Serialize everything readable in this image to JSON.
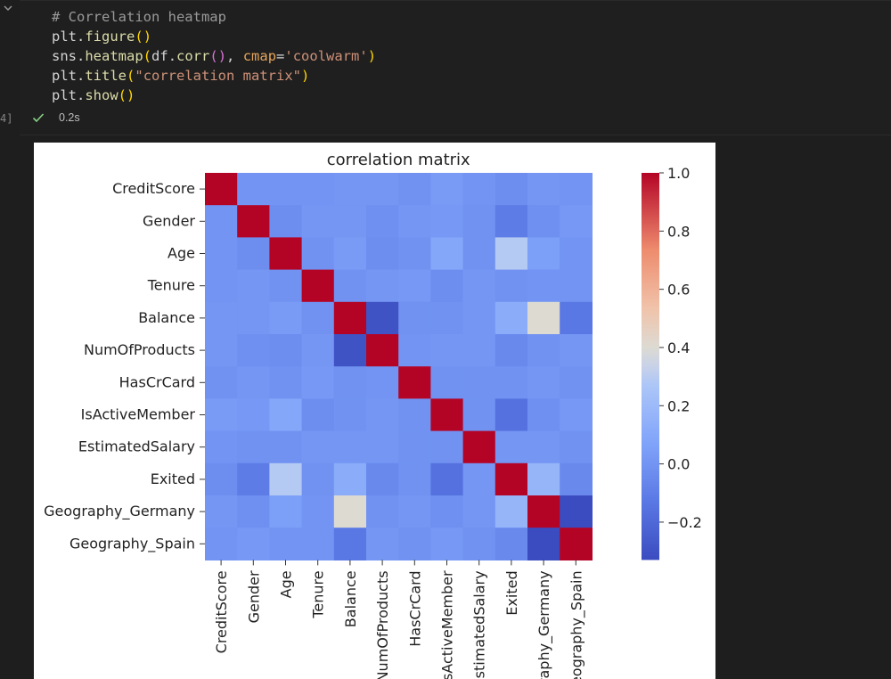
{
  "editor": {
    "code_lines": [
      "# Correlation heatmap",
      "plt.figure()",
      "sns.heatmap(df.corr(), cmap='coolwarm')",
      "plt.title(\"correlation matrix\")",
      "plt.show()"
    ],
    "exec_count": "4]",
    "status_time": "0.2s",
    "colors": {
      "background": "#1f1f1f",
      "comment": "#9a9a9a",
      "function": "#dcdcaa",
      "keyword_arg": "#e5a45a",
      "string": "#ce9178",
      "success": "#89d185"
    }
  },
  "chart_data": {
    "type": "heatmap",
    "title": "correlation matrix",
    "colormap": "coolwarm",
    "labels": [
      "CreditScore",
      "Gender",
      "Age",
      "Tenure",
      "Balance",
      "NumOfProducts",
      "HasCrCard",
      "IsActiveMember",
      "EstimatedSalary",
      "Exited",
      "Geography_Germany",
      "Geography_Spain"
    ],
    "x_tick_labels_visible": [
      "CreditScore",
      "Gender",
      "Age",
      "Tenure",
      "Balance",
      "NumOfProducts",
      "HasCrCard",
      "sActiveMember",
      "stimatedSalary",
      "Exited",
      "raphy_Germany",
      "eography_Spain"
    ],
    "matrix": [
      [
        1.0,
        0.0,
        0.0,
        0.0,
        0.01,
        0.01,
        -0.01,
        0.03,
        0.0,
        -0.03,
        0.01,
        0.0
      ],
      [
        0.0,
        1.0,
        -0.03,
        0.01,
        0.01,
        -0.02,
        0.01,
        0.02,
        -0.01,
        -0.11,
        -0.02,
        0.02
      ],
      [
        0.0,
        -0.03,
        1.0,
        -0.01,
        0.03,
        -0.03,
        -0.01,
        0.09,
        -0.01,
        0.29,
        0.05,
        0.0
      ],
      [
        0.0,
        0.01,
        -0.01,
        1.0,
        -0.01,
        0.01,
        0.02,
        -0.03,
        0.01,
        -0.01,
        0.0,
        0.0
      ],
      [
        0.01,
        0.01,
        0.03,
        -0.01,
        1.0,
        -0.3,
        -0.01,
        -0.01,
        0.01,
        0.12,
        0.4,
        -0.13
      ],
      [
        0.01,
        -0.02,
        -0.03,
        0.01,
        -0.3,
        1.0,
        0.0,
        0.01,
        0.01,
        -0.05,
        -0.01,
        0.01
      ],
      [
        -0.01,
        0.01,
        -0.01,
        0.02,
        -0.01,
        0.0,
        1.0,
        -0.01,
        -0.01,
        -0.01,
        0.01,
        -0.01
      ],
      [
        0.03,
        0.02,
        0.09,
        -0.03,
        -0.01,
        0.01,
        -0.01,
        1.0,
        -0.01,
        -0.16,
        -0.02,
        0.02
      ],
      [
        0.0,
        -0.01,
        -0.01,
        0.01,
        0.01,
        0.01,
        -0.01,
        -0.01,
        1.0,
        0.01,
        0.01,
        -0.01
      ],
      [
        -0.03,
        -0.11,
        0.29,
        -0.01,
        0.12,
        -0.05,
        -0.01,
        -0.16,
        0.01,
        1.0,
        0.17,
        -0.05
      ],
      [
        0.01,
        -0.02,
        0.05,
        0.0,
        0.4,
        -0.01,
        0.01,
        -0.02,
        0.01,
        0.17,
        1.0,
        -0.33
      ],
      [
        0.0,
        0.02,
        0.0,
        0.0,
        -0.13,
        0.01,
        -0.01,
        0.02,
        -0.01,
        -0.05,
        -0.33,
        1.0
      ]
    ],
    "colorbar": {
      "min": -0.33,
      "max": 1.0,
      "ticks": [
        1.0,
        0.8,
        0.6,
        0.4,
        0.2,
        0.0,
        -0.2
      ],
      "tick_labels": [
        "1.0",
        "0.8",
        "0.6",
        "0.4",
        "0.2",
        "0.0",
        "−0.2"
      ]
    }
  }
}
